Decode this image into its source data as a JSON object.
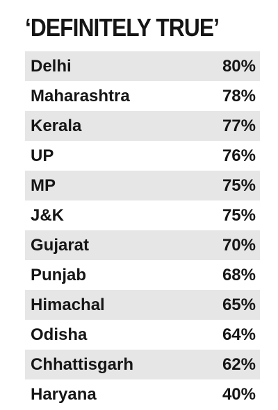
{
  "title": "‘DEFINITELY TRUE’",
  "chart_data": {
    "type": "table",
    "title": "‘DEFINITELY TRUE’",
    "rows": [
      {
        "state": "Delhi",
        "value": "80%"
      },
      {
        "state": "Maharashtra",
        "value": "78%"
      },
      {
        "state": "Kerala",
        "value": "77%"
      },
      {
        "state": "UP",
        "value": "76%"
      },
      {
        "state": "MP",
        "value": "75%"
      },
      {
        "state": "J&K",
        "value": "75%"
      },
      {
        "state": "Gujarat",
        "value": "70%"
      },
      {
        "state": "Punjab",
        "value": "68%"
      },
      {
        "state": "Himachal",
        "value": "65%"
      },
      {
        "state": "Odisha",
        "value": "64%"
      },
      {
        "state": "Chhattisgarh",
        "value": "62%"
      },
      {
        "state": "Haryana",
        "value": "40%"
      }
    ],
    "row_shading": "#e6e6e6"
  }
}
